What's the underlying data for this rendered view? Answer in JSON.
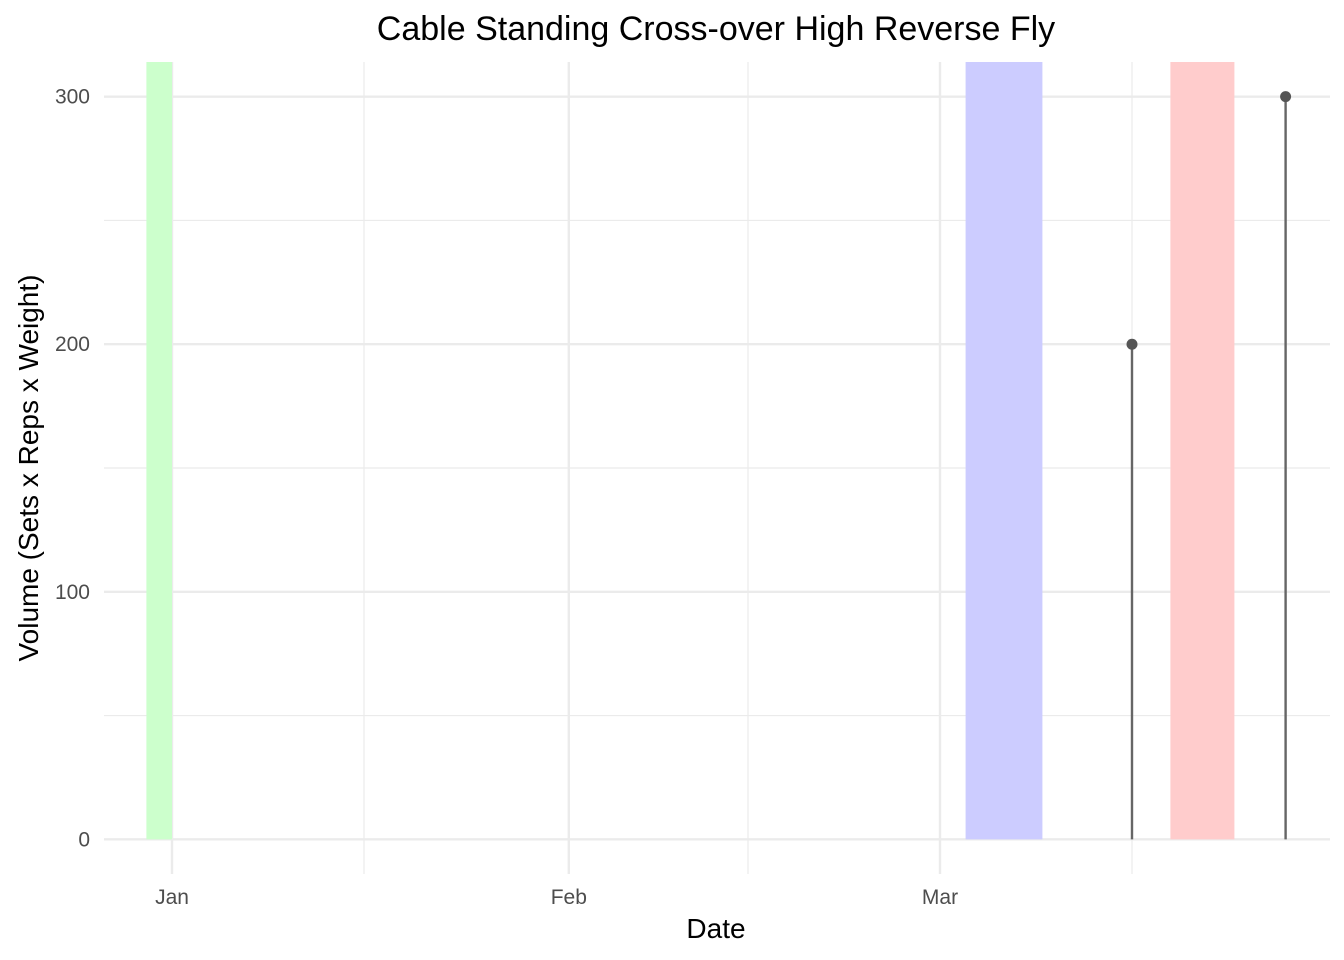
{
  "chart_data": {
    "type": "lollipop",
    "title": "Cable Standing Cross-over High Reverse Fly",
    "xlabel": "Date",
    "ylabel": "Volume (Sets x Reps x Weight)",
    "x_ticks": [
      "Jan",
      "Feb",
      "Mar"
    ],
    "y_ticks": [
      0,
      100,
      200,
      300
    ],
    "ylim": [
      -14,
      314
    ],
    "grid": true,
    "legend": "none",
    "points": [
      {
        "date": "2024-03-16",
        "value": 200
      },
      {
        "date": "2024-03-28",
        "value": 300
      }
    ],
    "shaded_periods": [
      {
        "start": "2023-12-30",
        "end": "2024-01-01",
        "color": "#ccffcc"
      },
      {
        "start": "2024-03-03",
        "end": "2024-03-09",
        "color": "#ccccff"
      },
      {
        "start": "2024-03-19",
        "end": "2024-03-24",
        "color": "#ffcccc"
      }
    ],
    "colors": {
      "stem": "#666666",
      "point": "#555555",
      "grid": "#ebebeb"
    }
  }
}
